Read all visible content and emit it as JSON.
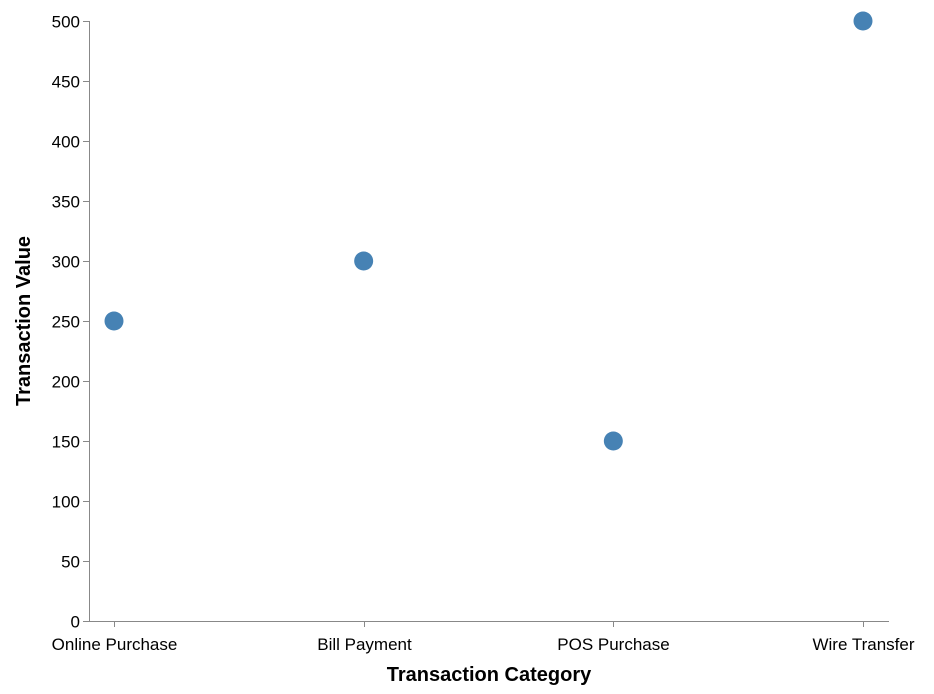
{
  "chart_data": {
    "type": "scatter",
    "title": "",
    "xlabel": "Transaction Category",
    "ylabel": "Transaction Value",
    "categories": [
      "Online Purchase",
      "Bill Payment",
      "POS Purchase",
      "Wire Transfer"
    ],
    "values": [
      250,
      300,
      150,
      500
    ],
    "ylim": [
      0,
      500
    ],
    "yticks": [
      0,
      50,
      100,
      150,
      200,
      250,
      300,
      350,
      400,
      450,
      500
    ],
    "grid": false,
    "legend": "none",
    "point_color": "#4682b4",
    "axis_color": "#888888"
  }
}
